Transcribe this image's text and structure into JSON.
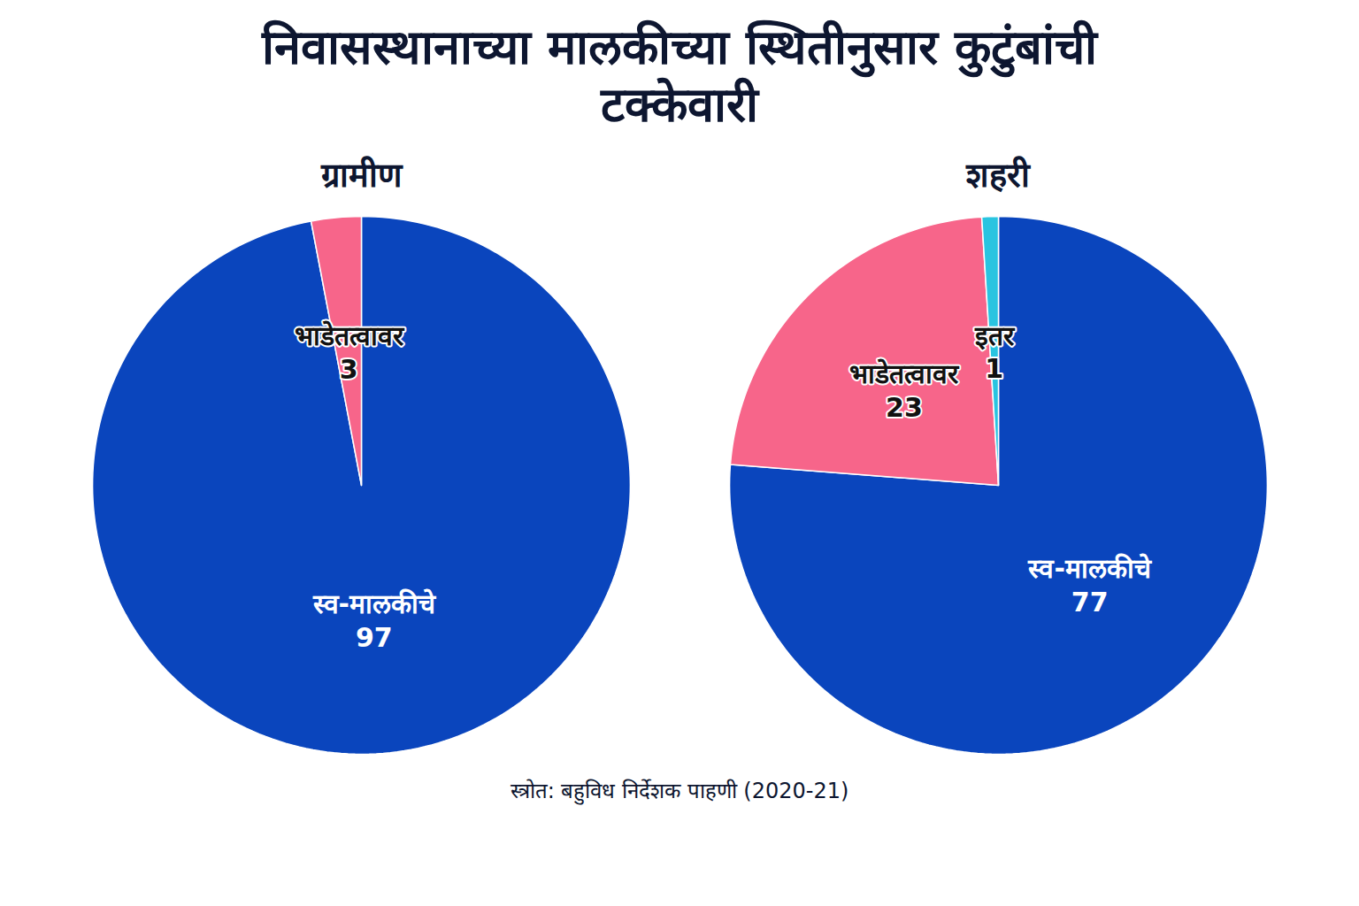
{
  "title": "निवासस्थानाच्या मालकीच्या स्थितीनुसार कुटुंबांची टक्केवारी",
  "source": "स्त्रोत: बहुविध निर्देशक पाहणी (2020-21)",
  "chart_data": [
    {
      "type": "pie",
      "title": "ग्रामीण",
      "categories": [
        "स्व-मालकीचे",
        "भाडेतत्वावर"
      ],
      "values": [
        97,
        3
      ],
      "colors": [
        "#0a45bd",
        "#f7658a"
      ],
      "data_labels": true
    },
    {
      "type": "pie",
      "title": "शहरी",
      "categories": [
        "स्व-मालकीचे",
        "भाडेतत्वावर",
        "इतर"
      ],
      "values": [
        77,
        23,
        1
      ],
      "colors": [
        "#0a45bd",
        "#f7658a",
        "#29c4e0"
      ],
      "data_labels": true
    }
  ]
}
